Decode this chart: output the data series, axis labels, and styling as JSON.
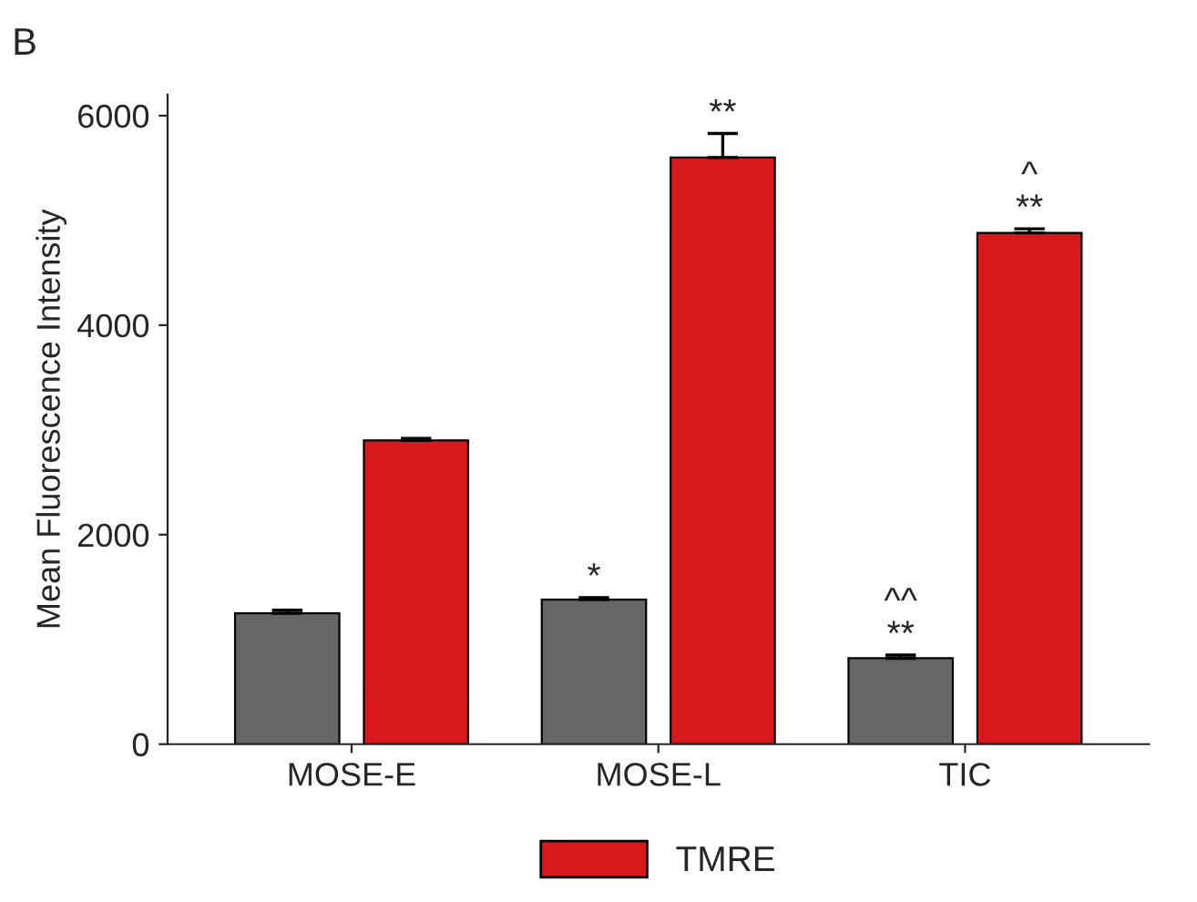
{
  "chart_data": {
    "type": "bar",
    "ylabel": "Mean Fluorescence Intensity",
    "categories": [
      "MOSE-E",
      "MOSE-L",
      "TIC"
    ],
    "series": [
      {
        "color": "#666666",
        "values": [
          1250,
          1380,
          820
        ],
        "errors": [
          30,
          20,
          30
        ]
      },
      {
        "name": "TMRE",
        "color": "#d7191c",
        "values": [
          2900,
          5600,
          4880
        ],
        "errors": [
          20,
          230,
          40
        ]
      }
    ],
    "ylim": [
      0,
      6200
    ],
    "yticks": [
      0,
      2000,
      4000,
      6000
    ],
    "grid": false,
    "legend": "bottom",
    "annotations": [
      "B",
      "*",
      "**",
      "**",
      "^^",
      "**",
      "^"
    ]
  }
}
